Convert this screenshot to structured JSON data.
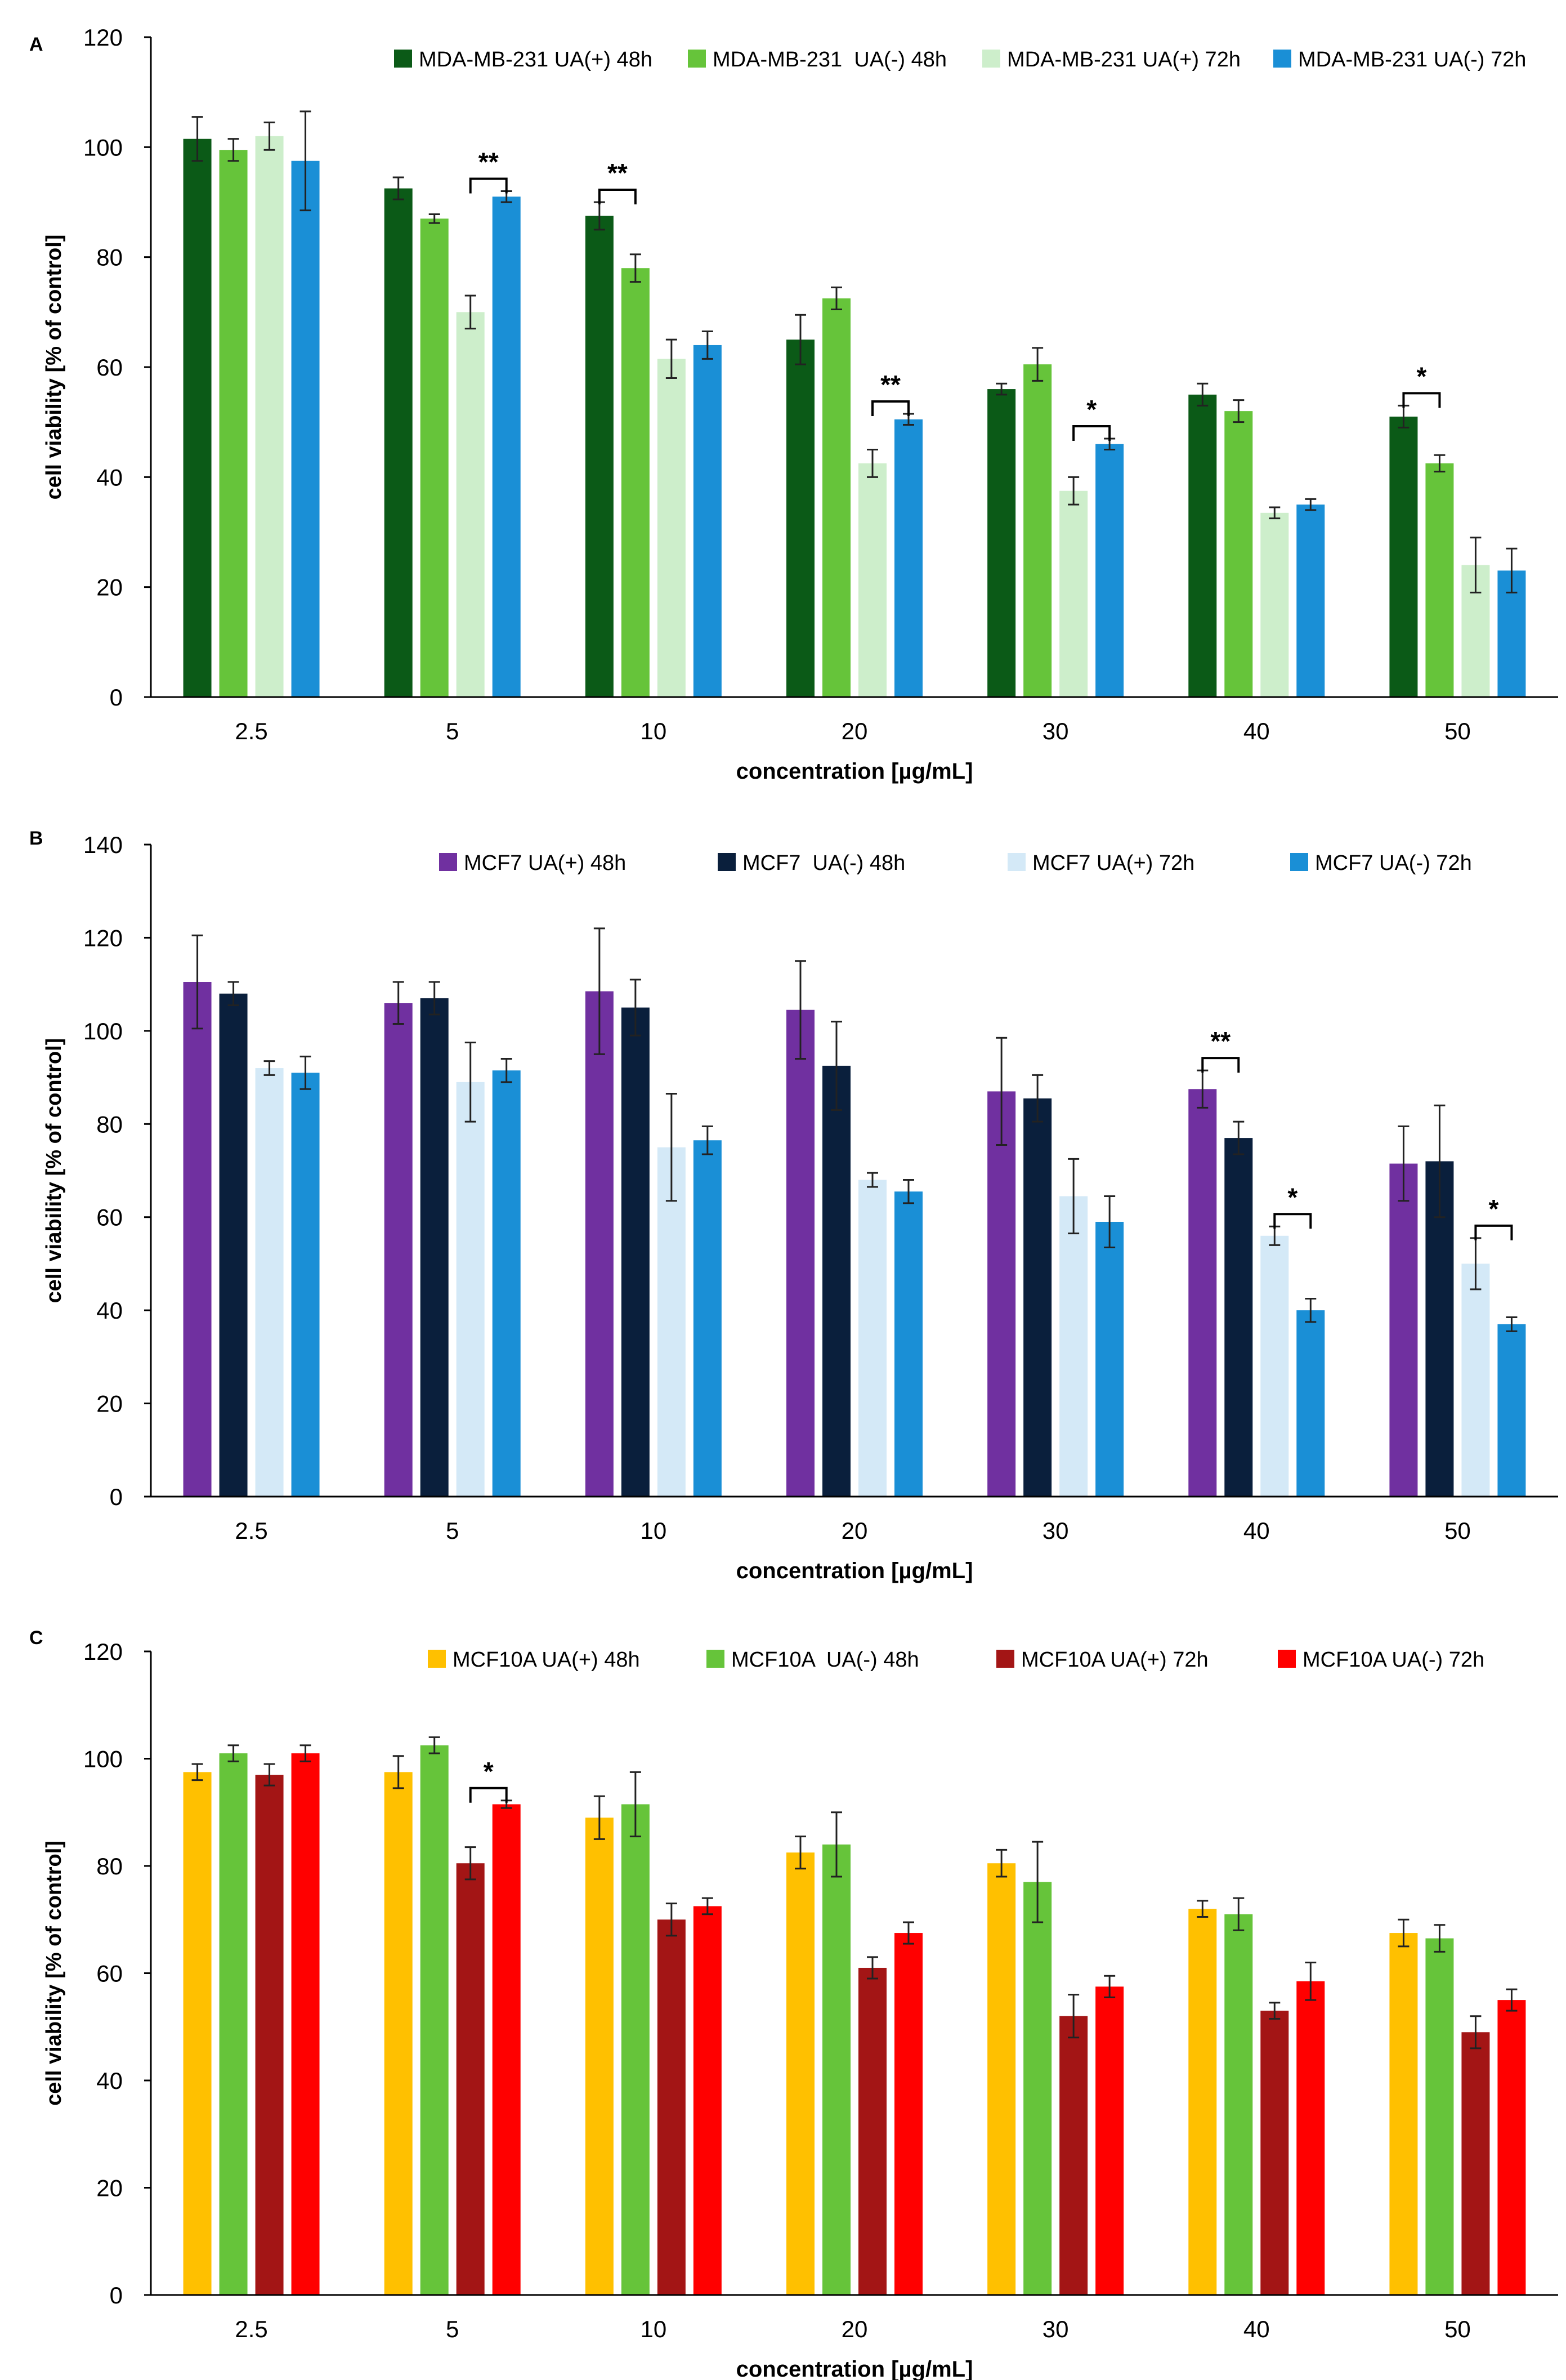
{
  "chart_data": [
    {
      "panel_label": "A",
      "type": "bar",
      "xlabel": "concentration [µg/mL]",
      "ylabel": "cell viability [% of control]",
      "ylim": [
        0,
        120
      ],
      "yticks": [
        0,
        20,
        40,
        60,
        80,
        100,
        120
      ],
      "categories": [
        "2.5",
        "5",
        "10",
        "20",
        "30",
        "40",
        "50"
      ],
      "series": [
        {
          "name": "MDA-MB-231 UA(+) 48h",
          "color": "#0b5a17",
          "values": [
            101.5,
            92.5,
            87.5,
            65,
            56,
            55,
            51
          ],
          "errors": [
            4,
            2,
            2.5,
            4.5,
            1,
            2,
            2
          ]
        },
        {
          "name": "MDA-MB-231  UA(-) 48h",
          "color": "#66c43a",
          "values": [
            99.5,
            87,
            78,
            72.5,
            60.5,
            52,
            42.5
          ],
          "errors": [
            2,
            0.8,
            2.5,
            2,
            3,
            2,
            1.5
          ]
        },
        {
          "name": "MDA-MB-231 UA(+) 72h",
          "color": "#cdeecb",
          "values": [
            102,
            70,
            61.5,
            42.5,
            37.5,
            33.5,
            24
          ],
          "errors": [
            2.5,
            3,
            3.5,
            2.5,
            2.5,
            1,
            5
          ]
        },
        {
          "name": "MDA-MB-231 UA(-) 72h",
          "color": "#1a8fd6",
          "values": [
            97.5,
            91,
            64,
            50.5,
            46,
            35,
            23
          ],
          "errors": [
            9,
            1,
            2.5,
            1,
            1,
            1,
            4
          ]
        }
      ],
      "significance": [
        {
          "category": "5",
          "from_series": 2,
          "to_series": 3,
          "label": "**"
        },
        {
          "category": "10",
          "from_series": 0,
          "to_series": 1,
          "label": "**"
        },
        {
          "category": "20",
          "from_series": 2,
          "to_series": 3,
          "label": "**"
        },
        {
          "category": "30",
          "from_series": 2,
          "to_series": 3,
          "label": "*"
        },
        {
          "category": "50",
          "from_series": 0,
          "to_series": 1,
          "label": "*"
        }
      ]
    },
    {
      "panel_label": "B",
      "type": "bar",
      "xlabel": "concentration [µg/mL]",
      "ylabel": "cell viability [% of control]",
      "ylim": [
        0,
        140
      ],
      "yticks": [
        0,
        20,
        40,
        60,
        80,
        100,
        120,
        140
      ],
      "categories": [
        "2.5",
        "5",
        "10",
        "20",
        "30",
        "40",
        "50"
      ],
      "series": [
        {
          "name": "MCF7 UA(+) 48h",
          "color": "#7030a0",
          "values": [
            110.5,
            106,
            108.5,
            104.5,
            87,
            87.5,
            71.5
          ],
          "errors": [
            10,
            4.5,
            13.5,
            10.5,
            11.5,
            4,
            8
          ]
        },
        {
          "name": "MCF7  UA(-) 48h",
          "color": "#0a1f3c",
          "values": [
            108,
            107,
            105,
            92.5,
            85.5,
            77,
            72
          ],
          "errors": [
            2.5,
            3.5,
            6,
            9.5,
            5,
            3.5,
            12
          ]
        },
        {
          "name": "MCF7 UA(+) 72h",
          "color": "#d4e9f7",
          "values": [
            92,
            89,
            75,
            68,
            64.5,
            56,
            50
          ],
          "errors": [
            1.5,
            8.5,
            11.5,
            1.5,
            8,
            2,
            5.5
          ]
        },
        {
          "name": "MCF7 UA(-) 72h",
          "color": "#1a8fd6",
          "values": [
            91,
            91.5,
            76.5,
            65.5,
            59,
            40,
            37
          ],
          "errors": [
            3.5,
            2.5,
            3,
            2.5,
            5.5,
            2.5,
            1.5
          ]
        }
      ],
      "significance": [
        {
          "category": "40",
          "from_series": 0,
          "to_series": 1,
          "label": "**"
        },
        {
          "category": "40",
          "from_series": 2,
          "to_series": 3,
          "label": "*"
        },
        {
          "category": "50",
          "from_series": 2,
          "to_series": 3,
          "label": "*"
        }
      ]
    },
    {
      "panel_label": "C",
      "type": "bar",
      "xlabel": "concentration [µg/mL]",
      "ylabel": "cell viability [% of control]",
      "ylim": [
        0,
        120
      ],
      "yticks": [
        0,
        20,
        40,
        60,
        80,
        100,
        120
      ],
      "categories": [
        "2.5",
        "5",
        "10",
        "20",
        "30",
        "40",
        "50"
      ],
      "series": [
        {
          "name": "MCF10A UA(+) 48h",
          "color": "#ffc000",
          "values": [
            97.5,
            97.5,
            89,
            82.5,
            80.5,
            72,
            67.5
          ],
          "errors": [
            1.5,
            3,
            4,
            3,
            2.5,
            1.5,
            2.5
          ]
        },
        {
          "name": "MCF10A  UA(-) 48h",
          "color": "#66c43a",
          "values": [
            101,
            102.5,
            91.5,
            84,
            77,
            71,
            66.5
          ],
          "errors": [
            1.5,
            1.5,
            6,
            6,
            7.5,
            3,
            2.5
          ]
        },
        {
          "name": "MCF10A UA(+) 72h",
          "color": "#a31515",
          "values": [
            97,
            80.5,
            70,
            61,
            52,
            53,
            49
          ],
          "errors": [
            2,
            3,
            3,
            2,
            4,
            1.5,
            3
          ]
        },
        {
          "name": "MCF10A UA(-) 72h",
          "color": "#ff0000",
          "values": [
            101,
            91.5,
            72.5,
            67.5,
            57.5,
            58.5,
            55
          ],
          "errors": [
            1.5,
            0.7,
            1.5,
            2,
            2,
            3.5,
            2
          ]
        }
      ],
      "significance": [
        {
          "category": "5",
          "from_series": 2,
          "to_series": 3,
          "label": "*"
        }
      ]
    }
  ]
}
